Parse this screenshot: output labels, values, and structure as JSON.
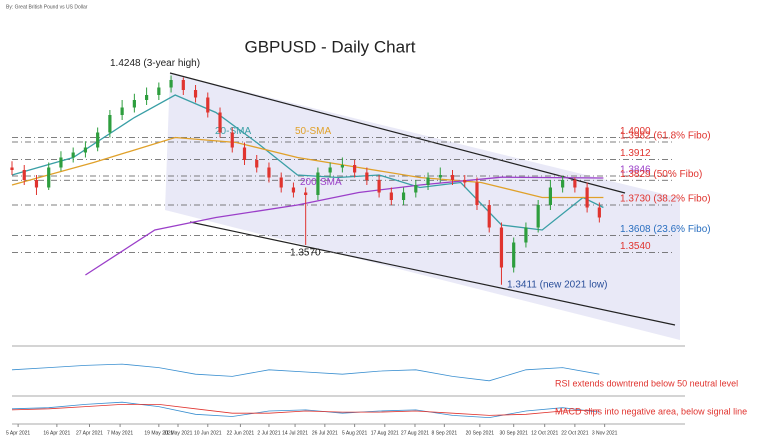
{
  "source": "By: Great British Pound vs US Dollar",
  "chart_data": [
    {
      "type": "candlestick",
      "title": "GBPUSD - Daily Chart",
      "up_color": "#2e9e3e",
      "down_color": "#e0342f",
      "xlim": [
        0,
        165
      ],
      "ylim": [
        1.317,
        1.447
      ],
      "xticks": [
        {
          "value": 1.5,
          "label": "5 Apr 2021"
        },
        {
          "value": 11,
          "label": "16 Apr 2021"
        },
        {
          "value": 19,
          "label": "27 Apr 2021"
        },
        {
          "value": 26.5,
          "label": "7 May 2021"
        },
        {
          "value": 36,
          "label": "19 May 2021"
        },
        {
          "value": 40.7,
          "label": "31 May 2021"
        },
        {
          "value": 48,
          "label": "10 Jun 2021"
        },
        {
          "value": 56,
          "label": "22 Jun 2021"
        },
        {
          "value": 63,
          "label": "2 Jul 2021"
        },
        {
          "value": 69.4,
          "label": "14 Jul 2021"
        },
        {
          "value": 76.7,
          "label": "26 Jul 2021"
        },
        {
          "value": 84,
          "label": "5 Aug 2021"
        },
        {
          "value": 91.4,
          "label": "17 Aug 2021"
        },
        {
          "value": 98.8,
          "label": "27 Aug 2021"
        },
        {
          "value": 106,
          "label": "8 Sep 2021"
        },
        {
          "value": 114.7,
          "label": "20 Sep 2021"
        },
        {
          "value": 123,
          "label": "30 Sep 2021"
        },
        {
          "value": 130.6,
          "label": "12 Oct 2021"
        },
        {
          "value": 138,
          "label": "22 Oct 2021"
        },
        {
          "value": 145.3,
          "label": "3 Nov 2021"
        }
      ],
      "x": [
        0,
        3,
        6,
        9,
        12,
        15,
        18,
        21,
        24,
        27,
        30,
        33,
        36,
        39,
        42,
        45,
        48,
        51,
        54,
        57,
        60,
        63,
        66,
        69,
        72,
        75,
        78,
        81,
        84,
        87,
        90,
        93,
        96,
        99,
        102,
        105,
        108,
        111,
        114,
        117,
        120,
        123,
        126,
        129,
        132,
        135,
        138,
        141,
        144
      ],
      "open": [
        1.388,
        1.387,
        1.383,
        1.38,
        1.388,
        1.392,
        1.394,
        1.396,
        1.402,
        1.409,
        1.412,
        1.415,
        1.417,
        1.42,
        1.423,
        1.419,
        1.416,
        1.41,
        1.402,
        1.396,
        1.391,
        1.388,
        1.384,
        1.38,
        1.378,
        1.377,
        1.386,
        1.388,
        1.389,
        1.386,
        1.383,
        1.378,
        1.375,
        1.378,
        1.381,
        1.384,
        1.385,
        1.383,
        1.382,
        1.373,
        1.364,
        1.348,
        1.358,
        1.364,
        1.373,
        1.38,
        1.383,
        1.38,
        1.372
      ],
      "high": [
        1.3905,
        1.389,
        1.385,
        1.39,
        1.3945,
        1.396,
        1.3985,
        1.404,
        1.411,
        1.415,
        1.4175,
        1.42,
        1.422,
        1.4248,
        1.424,
        1.421,
        1.418,
        1.412,
        1.404,
        1.398,
        1.393,
        1.39,
        1.386,
        1.382,
        1.38,
        1.388,
        1.39,
        1.392,
        1.391,
        1.388,
        1.385,
        1.38,
        1.38,
        1.383,
        1.386,
        1.388,
        1.387,
        1.385,
        1.384,
        1.375,
        1.366,
        1.36,
        1.366,
        1.375,
        1.383,
        1.3846,
        1.384,
        1.382,
        1.374
      ],
      "low": [
        1.385,
        1.381,
        1.377,
        1.379,
        1.3865,
        1.39,
        1.392,
        1.3945,
        1.4,
        1.407,
        1.41,
        1.413,
        1.415,
        1.418,
        1.417,
        1.414,
        1.408,
        1.4,
        1.394,
        1.389,
        1.386,
        1.382,
        1.378,
        1.376,
        1.357,
        1.375,
        1.384,
        1.386,
        1.384,
        1.381,
        1.376,
        1.373,
        1.373,
        1.376,
        1.379,
        1.382,
        1.381,
        1.38,
        1.371,
        1.362,
        1.3411,
        1.346,
        1.356,
        1.362,
        1.371,
        1.378,
        1.378,
        1.37,
        1.366
      ],
      "close": [
        1.387,
        1.383,
        1.38,
        1.388,
        1.392,
        1.394,
        1.396,
        1.402,
        1.409,
        1.412,
        1.415,
        1.417,
        1.42,
        1.423,
        1.419,
        1.416,
        1.41,
        1.402,
        1.396,
        1.391,
        1.388,
        1.384,
        1.38,
        1.378,
        1.377,
        1.386,
        1.388,
        1.389,
        1.386,
        1.383,
        1.378,
        1.375,
        1.378,
        1.381,
        1.384,
        1.385,
        1.383,
        1.382,
        1.373,
        1.364,
        1.348,
        1.358,
        1.364,
        1.373,
        1.38,
        1.383,
        1.38,
        1.372,
        1.368
      ],
      "series": [
        {
          "name": "20-SMA",
          "color": "#3a9fa6",
          "x": [
            0,
            15,
            30,
            40,
            50,
            60,
            70,
            80,
            90,
            100,
            110,
            120,
            130,
            140,
            145
          ],
          "values": [
            1.385,
            1.392,
            1.408,
            1.417,
            1.41,
            1.398,
            1.385,
            1.384,
            1.385,
            1.38,
            1.382,
            1.365,
            1.363,
            1.376,
            1.372
          ]
        },
        {
          "name": "50-SMA",
          "color": "#e0a12a",
          "x": [
            0,
            20,
            40,
            55,
            70,
            85,
            100,
            115,
            130,
            145
          ],
          "values": [
            1.381,
            1.39,
            1.4,
            1.398,
            1.392,
            1.388,
            1.384,
            1.382,
            1.376,
            1.376
          ]
        },
        {
          "name": "200-SMA",
          "color": "#9b3fc9",
          "x": [
            18,
            35,
            50,
            70,
            85,
            100,
            120,
            145
          ],
          "values": [
            1.345,
            1.363,
            1.368,
            1.373,
            1.378,
            1.381,
            1.3841,
            1.3838
          ]
        }
      ],
      "levels": [
        {
          "value": 1.4,
          "label": "1.4000",
          "color": "#e0342f"
        },
        {
          "value": 1.3982,
          "label": "1.3982 (61.8% Fibo)",
          "color": "#e0342f"
        },
        {
          "value": 1.3912,
          "label": "1.3912",
          "color": "#e0342f"
        },
        {
          "value": 1.3846,
          "label": "1.3846",
          "color": "#9b3fc9"
        },
        {
          "value": 1.3829,
          "label": "1.3829 (50% Fibo)",
          "color": "#e0342f"
        },
        {
          "value": 1.373,
          "label": "1.3730 (38.2% Fibo)",
          "color": "#e0342f"
        },
        {
          "value": 1.3608,
          "label": "1.3608 (23.6% Fibo)",
          "color": "#2a6fc0"
        },
        {
          "value": 1.354,
          "label": "1.3540",
          "color": "#e0342f"
        }
      ],
      "annotations": [
        {
          "value": 1.4248,
          "label": "1.4248 (3-year high)"
        },
        {
          "value": 1.357,
          "label": "1.3570"
        },
        {
          "value": 1.3411,
          "label": "1.3411 (new 2021 low)"
        }
      ]
    },
    {
      "type": "line",
      "annotation": "RSI extends downtrend below 50 neutral level",
      "xlim": [
        0,
        165
      ],
      "ylim": [
        0,
        100
      ],
      "series": [
        {
          "color": "#3a8fd0",
          "x": [
            0,
            9,
            18,
            27,
            36,
            45,
            54,
            63,
            72,
            81,
            90,
            99,
            108,
            117,
            126,
            135,
            144
          ],
          "values": [
            55,
            60,
            65,
            68,
            60,
            45,
            40,
            55,
            50,
            45,
            52,
            55,
            40,
            30,
            55,
            60,
            45
          ]
        }
      ]
    },
    {
      "type": "line",
      "annotation": "MACD slips into negative area, below signal line",
      "xlim": [
        0,
        165
      ],
      "ylim": [
        -0.01,
        0.01
      ],
      "series": [
        {
          "color": "#3a8fd0",
          "x": [
            0,
            9,
            18,
            27,
            36,
            45,
            54,
            63,
            72,
            81,
            90,
            99,
            108,
            117,
            126,
            135,
            144
          ],
          "values": [
            0.002,
            0.003,
            0.006,
            0.008,
            0.004,
            -0.003,
            -0.005,
            0,
            0.001,
            -0.002,
            0,
            0.001,
            -0.004,
            -0.006,
            0,
            0.003,
            -0.001
          ]
        },
        {
          "color": "#e0342f",
          "x": [
            0,
            9,
            18,
            27,
            36,
            45,
            54,
            63,
            72,
            81,
            90,
            99,
            108,
            117,
            126,
            135,
            144
          ],
          "values": [
            0.001,
            0.002,
            0.004,
            0.006,
            0.006,
            0.002,
            -0.002,
            -0.002,
            0,
            -0.001,
            -0.001,
            0,
            -0.002,
            -0.004,
            -0.003,
            0,
            0.001
          ]
        }
      ]
    }
  ]
}
